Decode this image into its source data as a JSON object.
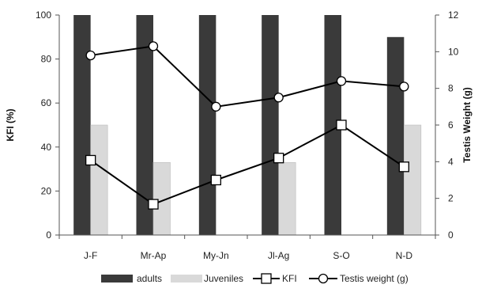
{
  "chart_data": {
    "type": "bar",
    "categories": [
      "J-F",
      "Mr-Ap",
      "My-Jn",
      "Jl-Ag",
      "S-O",
      "N-D"
    ],
    "left_axis": {
      "label": "KFI (%)",
      "ylim": [
        0,
        100
      ],
      "ticks": [
        "0",
        "20",
        "40",
        "60",
        "80",
        "100"
      ]
    },
    "right_axis": {
      "label": "Testis Weight (g)",
      "ylim": [
        0,
        12
      ],
      "ticks": [
        "0",
        "2",
        "4",
        "6",
        "8",
        "10",
        "12"
      ]
    },
    "series": [
      {
        "name": "adults",
        "kind": "bar",
        "axis": "left",
        "color": "#3a3a3a",
        "values": [
          100,
          100,
          100,
          100,
          100,
          90
        ]
      },
      {
        "name": "Juveniles",
        "kind": "bar",
        "axis": "left",
        "color": "#d9d9d9",
        "values": [
          50,
          33,
          0,
          33,
          0,
          50
        ]
      },
      {
        "name": "KFI",
        "kind": "line",
        "marker": "square",
        "axis": "left",
        "color": "#000000",
        "values": [
          34,
          14,
          25,
          35,
          50,
          31
        ]
      },
      {
        "name": "Testis weight (g)",
        "kind": "line",
        "marker": "circle",
        "axis": "right",
        "color": "#000000",
        "values": [
          9.8,
          10.3,
          7.0,
          7.5,
          8.4,
          8.1
        ]
      }
    ],
    "legend": {
      "position": "bottom",
      "labels": [
        "adults",
        "Juveniles",
        "KFI",
        "Testis weight (g)"
      ]
    },
    "grid": false
  }
}
